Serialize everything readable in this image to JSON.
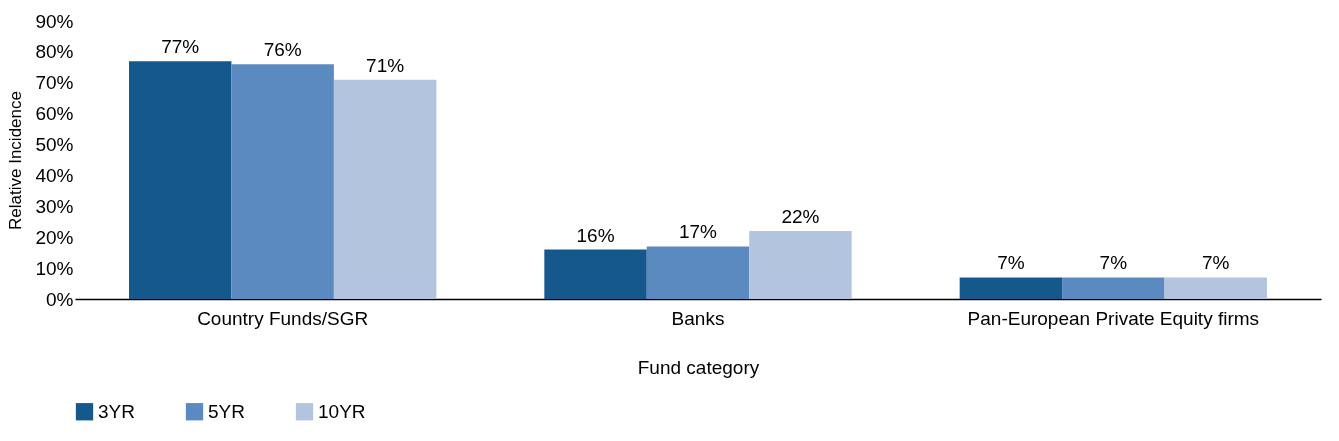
{
  "chart_data": {
    "type": "bar",
    "xlabel": "Fund category",
    "ylabel": "Relative Incidence",
    "categories": [
      "Country Funds/SGR",
      "Banks",
      "Pan-European Private Equity firms"
    ],
    "series": [
      {
        "name": "3YR",
        "color": "#15588c",
        "values": [
          77,
          16,
          7
        ],
        "value_labels": [
          "77%",
          "16%",
          "7%"
        ]
      },
      {
        "name": "5YR",
        "color": "#5a8abf",
        "values": [
          76,
          17,
          7
        ],
        "value_labels": [
          "76%",
          "17%",
          "7%"
        ]
      },
      {
        "name": "10YR",
        "color": "#b3c4de",
        "values": [
          71,
          22,
          7
        ],
        "value_labels": [
          "71%",
          "22%",
          "7%"
        ]
      }
    ],
    "ylim": [
      0,
      90
    ],
    "yticks": [
      {
        "value": 0,
        "label": "0%"
      },
      {
        "value": 10,
        "label": "10%"
      },
      {
        "value": 20,
        "label": "20%"
      },
      {
        "value": 30,
        "label": "30%"
      },
      {
        "value": 40,
        "label": "40%"
      },
      {
        "value": 50,
        "label": "50%"
      },
      {
        "value": 60,
        "label": "60%"
      },
      {
        "value": 70,
        "label": "70%"
      },
      {
        "value": 80,
        "label": "80%"
      },
      {
        "value": 90,
        "label": "90%"
      }
    ],
    "grid": false,
    "legend": "bottom"
  }
}
